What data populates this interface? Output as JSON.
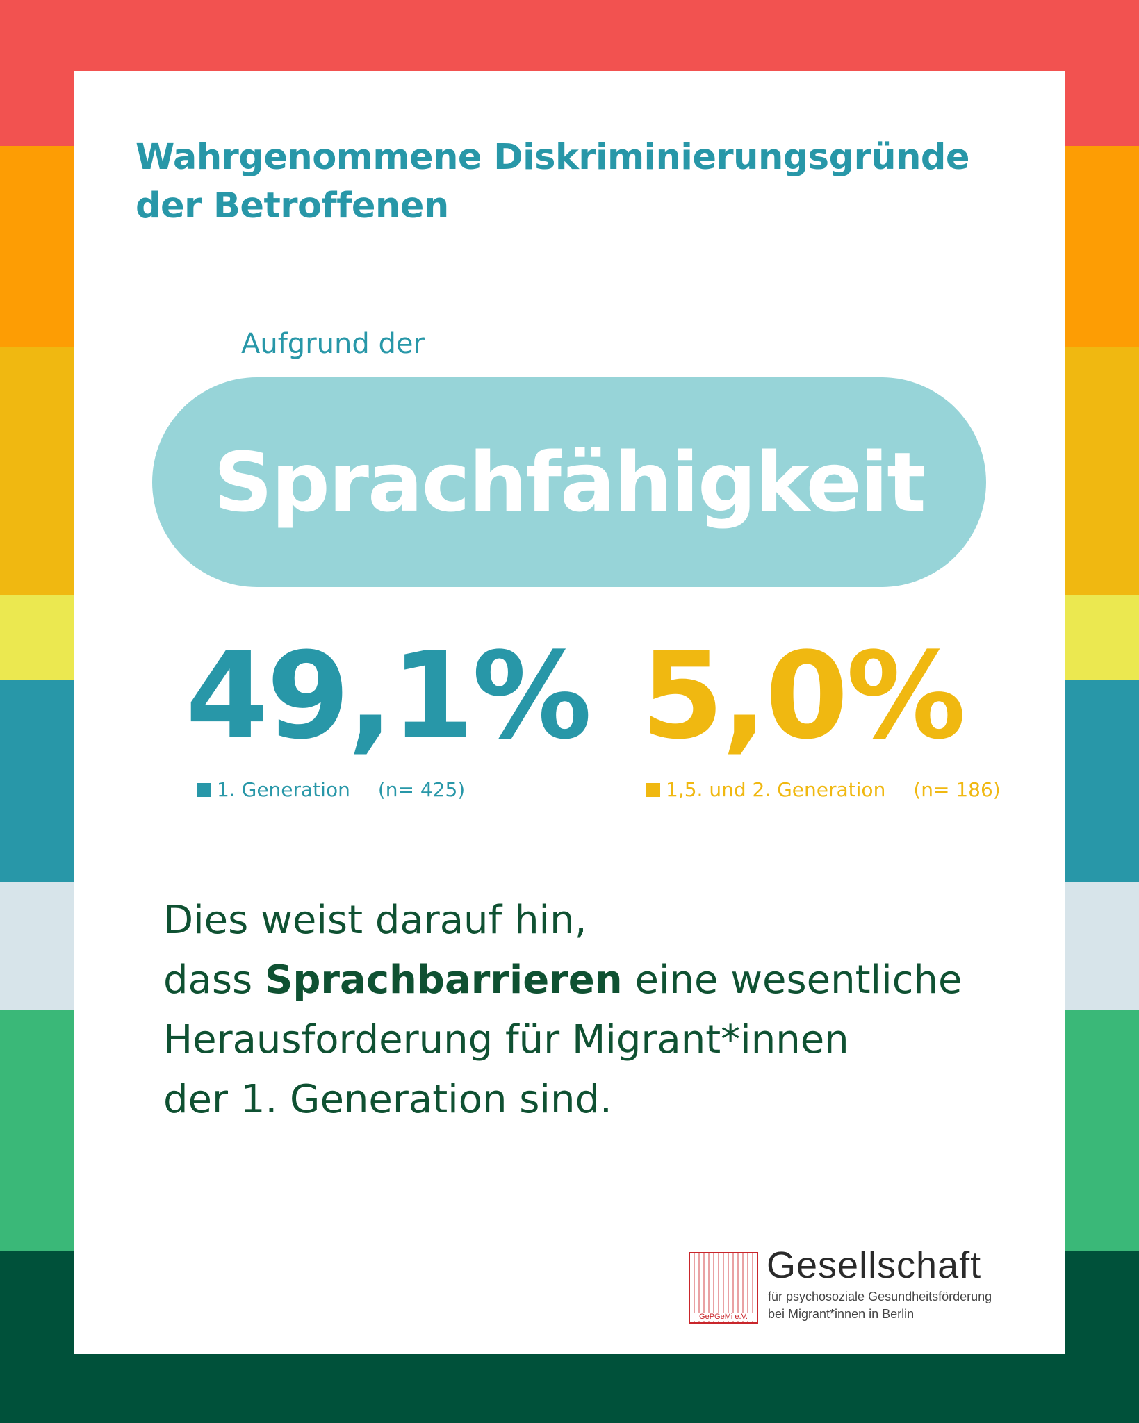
{
  "colors": {
    "stripes": [
      "#f25250",
      "#fd9d04",
      "#f0b811",
      "#ebe850",
      "#2897a8",
      "#d7e4ea",
      "#3ab878",
      "#00513a"
    ],
    "card": "#ffffff",
    "teal": "#2897a8",
    "yellow": "#f0b811",
    "pill": "#97d4d8",
    "body_text": "#0f5132",
    "seal": "#c9262b"
  },
  "heading": {
    "line1": "Wahrgenommene Diskriminierungsgründe",
    "line2": "der Betroffenen"
  },
  "intro": "Aufgrund der",
  "highlight": "Sprachfähigkeit",
  "stats": [
    {
      "value": "49,1%",
      "label": "1.  Generation",
      "n": "(n= 425)"
    },
    {
      "value": "5,0%",
      "label": "1,5. und 2.  Generation",
      "n": "(n= 186)"
    }
  ],
  "body": {
    "line1": "Dies weist darauf hin,",
    "line2_pre": "dass ",
    "line2_bold": "Sprachbarrieren",
    "line2_post": " eine wesentliche",
    "line3": "Herausforderung für Migrant*innen",
    "line4": "der 1. Generation sind."
  },
  "logo": {
    "seal_text": "GePGeMi e.V.",
    "name": "Gesellschaft",
    "sub1": "für psychosoziale Gesundheitsförderung",
    "sub2": "bei Migrant*innen in Berlin"
  }
}
